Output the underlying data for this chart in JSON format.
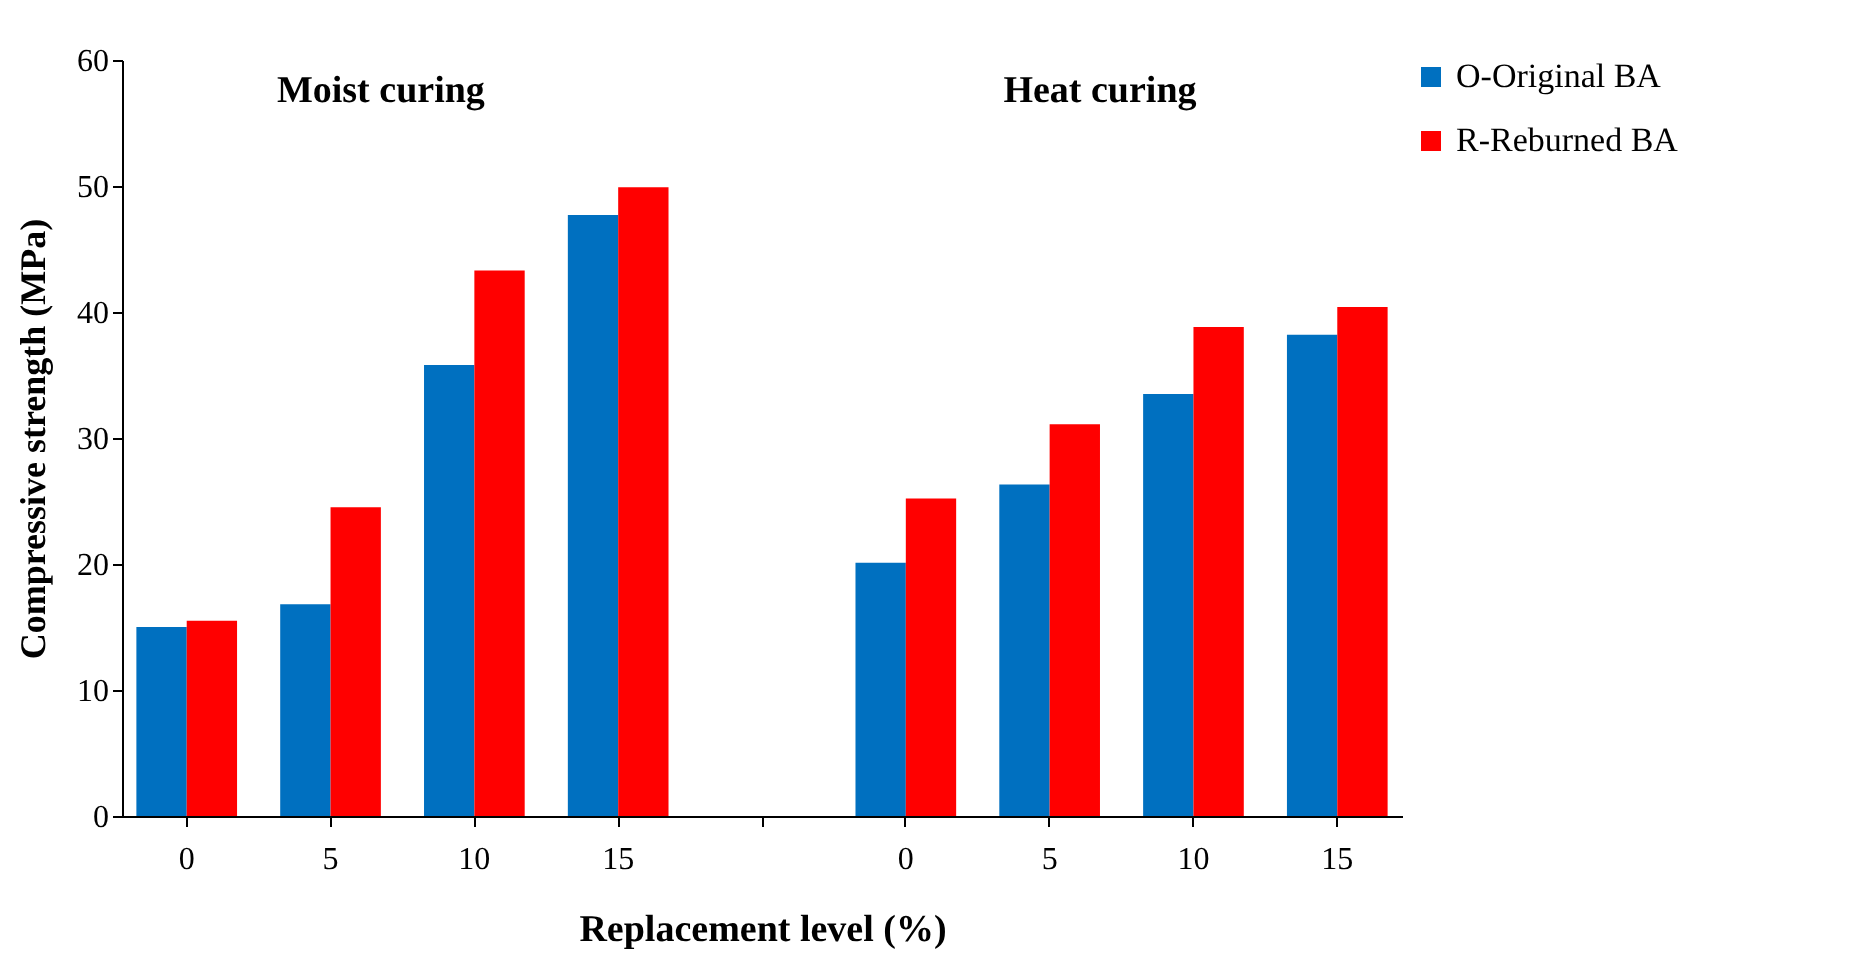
{
  "chart_data": {
    "type": "bar",
    "categories": [
      "0",
      "5",
      "10",
      "15",
      null,
      "0",
      "5",
      "10",
      "15"
    ],
    "xlabel": "Replacement level (%)",
    "ylabel": "Compressive strength (MPa)",
    "annotations": [
      "Moist curing",
      "Heat curing"
    ],
    "series": [
      {
        "name": "O-Original BA",
        "color": "#0070c0",
        "values": [
          15,
          16.8,
          35.8,
          47.7,
          null,
          20.1,
          26.3,
          33.5,
          38.2
        ]
      },
      {
        "name": "R-Reburned BA",
        "color": "#ff0000",
        "values": [
          15.5,
          24.5,
          43.3,
          49.9,
          null,
          25.2,
          31.1,
          38.8,
          40.4
        ]
      }
    ],
    "ylim": [
      0,
      60
    ],
    "yticks": [
      0,
      10,
      20,
      30,
      40,
      50,
      60
    ],
    "grid": false,
    "legend": "top right"
  }
}
